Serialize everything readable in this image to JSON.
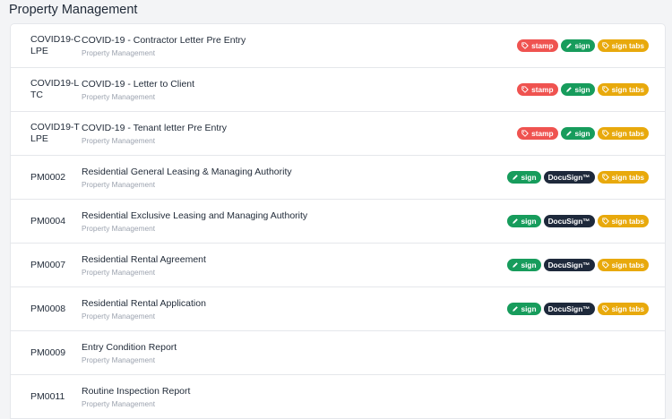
{
  "section": {
    "title": "Property Management"
  },
  "badge_labels": {
    "stamp": "stamp",
    "sign": "sign",
    "docusign": "DocuSign™",
    "sign_tabs": "sign tabs"
  },
  "badge_colors": {
    "stamp": "#ef5350",
    "sign": "#179c5c",
    "docusign": "#1e293b",
    "sign_tabs": "#e8a90c"
  },
  "badge_icons": {
    "stamp": "tag-icon",
    "sign": "pencil-icon",
    "sign_tabs": "tag-icon"
  },
  "rows": [
    {
      "code": "COVID19-CLPE",
      "title": "COVID-19 - Contractor Letter Pre Entry",
      "subtitle": "Property Management",
      "badges": [
        "stamp",
        "sign",
        "sign_tabs"
      ]
    },
    {
      "code": "COVID19-LTC",
      "title": "COVID-19 - Letter to Client",
      "subtitle": "Property Management",
      "badges": [
        "stamp",
        "sign",
        "sign_tabs"
      ]
    },
    {
      "code": "COVID19-TLPE",
      "title": "COVID-19 - Tenant letter Pre Entry",
      "subtitle": "Property Management",
      "badges": [
        "stamp",
        "sign",
        "sign_tabs"
      ]
    },
    {
      "code": "PM0002",
      "title": "Residential General Leasing & Managing Authority",
      "subtitle": "Property Management",
      "badges": [
        "sign",
        "docusign",
        "sign_tabs"
      ]
    },
    {
      "code": "PM0004",
      "title": "Residential Exclusive Leasing and Managing Authority",
      "subtitle": "Property Management",
      "badges": [
        "sign",
        "docusign",
        "sign_tabs"
      ]
    },
    {
      "code": "PM0007",
      "title": "Residential Rental Agreement",
      "subtitle": "Property Management",
      "badges": [
        "sign",
        "docusign",
        "sign_tabs"
      ]
    },
    {
      "code": "PM0008",
      "title": "Residential Rental Application",
      "subtitle": "Property Management",
      "badges": [
        "sign",
        "docusign",
        "sign_tabs"
      ]
    },
    {
      "code": "PM0009",
      "title": "Entry Condition Report",
      "subtitle": "Property Management",
      "badges": []
    },
    {
      "code": "PM0011",
      "title": "Routine Inspection Report",
      "subtitle": "Property Management",
      "badges": []
    }
  ]
}
